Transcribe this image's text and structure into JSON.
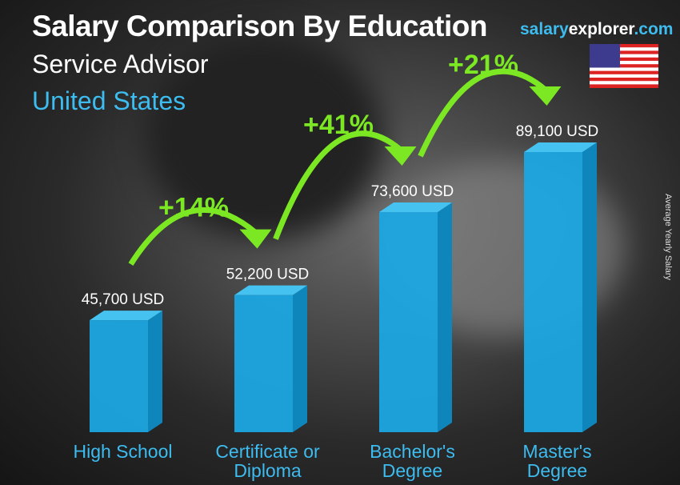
{
  "header": {
    "title": "Salary Comparison By Education",
    "subtitle": "Service Advisor",
    "country": "United States",
    "brand_part1": "salary",
    "brand_part2": "explorer",
    "brand_part3": ".com",
    "flag_icon": "us-flag-icon"
  },
  "colors": {
    "bar": "#1ca6e0",
    "bar_side": "#0f86bb",
    "bar_top": "#46c2f0",
    "arrow": "#7ce824",
    "label": "#3dbcf0"
  },
  "chart_data": {
    "type": "bar",
    "title": "Salary Comparison By Education",
    "ylabel": "Average Yearly Salary",
    "categories": [
      [
        "High School"
      ],
      [
        "Certificate or",
        "Diploma"
      ],
      [
        "Bachelor's",
        "Degree"
      ],
      [
        "Master's",
        "Degree"
      ]
    ],
    "values": [
      45700,
      52200,
      73600,
      89100
    ],
    "data_labels": [
      "45,700 USD",
      "52,200 USD",
      "73,600 USD",
      "89,100 USD"
    ],
    "changes": [
      "+14%",
      "+41%",
      "+21%"
    ],
    "grid": false
  }
}
